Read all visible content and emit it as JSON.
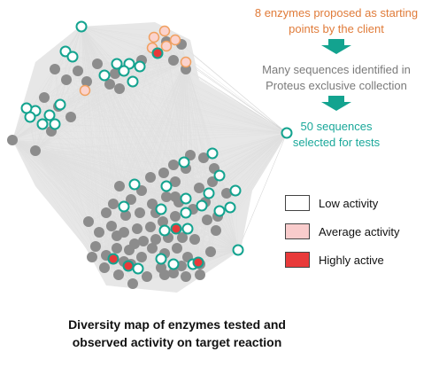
{
  "annotations": {
    "starting_points": [
      "8 enzymes proposed as starting",
      "points by the client"
    ],
    "identified": [
      "Many sequences identified in",
      "Proteus exclusive collection"
    ],
    "selected": [
      "50 sequences",
      "selected for tests"
    ]
  },
  "legend": [
    {
      "label": "Low activity",
      "color": "#ffffff"
    },
    {
      "label": "Average activity",
      "color": "#f9cccc"
    },
    {
      "label": "Highly active",
      "color": "#e83a3a"
    }
  ],
  "caption": [
    "Diversity map of enzymes tested and",
    "observed activity on target reaction"
  ],
  "colors": {
    "edge": "#c8c8c8",
    "node_gray": "#8c8c8c",
    "node_teal_stroke": "#13a38f",
    "node_orange_stroke": "#f0a060",
    "arrow": "#13a38f",
    "text_orange": "#e07b39",
    "text_gray": "#7a7a7a",
    "text_green": "#1aa89a"
  }
}
